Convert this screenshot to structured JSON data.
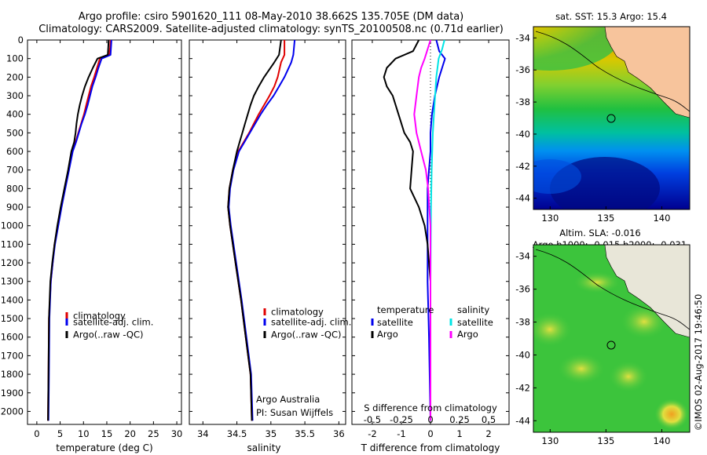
{
  "header": {
    "line1": "Argo profile: csiro 5901620_111 08-May-2010 38.662S 135.705E (DM data)",
    "line2": "Climatology: CARS2009. Satellite-adjusted climatology: synTS_20100508.nc (0.71d earlier)"
  },
  "depth_ticks": [
    "0",
    "100",
    "200",
    "300",
    "400",
    "500",
    "600",
    "700",
    "800",
    "900",
    "1000",
    "1100",
    "1200",
    "1300",
    "1400",
    "1500",
    "1600",
    "1700",
    "1800",
    "1900",
    "2000"
  ],
  "colors": {
    "climatology": "#e00000",
    "satellite": "#0000ee",
    "argo": "#000000",
    "sat_salinity": "#00e5e5",
    "argo_salinity": "#ff00ff"
  },
  "temperature_panel": {
    "xlabel": "temperature (deg C)",
    "xticks": [
      "0",
      "5",
      "10",
      "15",
      "20",
      "25",
      "30"
    ],
    "legend": [
      "climatology",
      "satellite-adj. clim.",
      "Argo(..raw -QC)"
    ]
  },
  "salinity_panel": {
    "xlabel": "salinity",
    "xticks": [
      "34",
      "34.5",
      "35",
      "35.5",
      "36"
    ],
    "legend": [
      "climatology",
      "satellite-adj. clim.",
      "Argo(..raw -QC)"
    ],
    "note1": "Argo Australia",
    "note2": "PI: Susan Wijffels"
  },
  "diff_panel": {
    "xlabel": "T difference from climatology",
    "xticks": [
      "-2",
      "-1",
      "0",
      "1",
      "2"
    ],
    "top_label": "S difference from climatology",
    "top_ticks": [
      "-0.5",
      "-0.25",
      "0",
      "0.25",
      "0.5"
    ],
    "legend_left_title": "temperature",
    "legend_right_title": "salinity",
    "legend_left": [
      "satellite",
      "Argo"
    ],
    "legend_right": [
      "satellite",
      "Argo"
    ]
  },
  "sst_map": {
    "title": "sat. SST: 15.3  Argo: 15.4",
    "xticks": [
      "130",
      "135",
      "140"
    ],
    "yticks": [
      "-34",
      "-36",
      "-38",
      "-40",
      "-42",
      "-44"
    ]
  },
  "sla_map": {
    "title1": "Altim. SLA: -0.016",
    "title2": "Argo h1000: -0.015  h2000: -0.031",
    "xticks": [
      "130",
      "135",
      "140"
    ],
    "yticks": [
      "-34",
      "-36",
      "-38",
      "-40",
      "-42",
      "-44"
    ]
  },
  "credit": "©IMOS 02-Aug-2017 19:46:50",
  "chart_data": [
    {
      "type": "line",
      "xlabel": "temperature (deg C)",
      "ylabel": "",
      "xlim": [
        -2,
        31
      ],
      "ylim": [
        2070,
        0
      ],
      "series": [
        {
          "name": "climatology",
          "color": "#e00000",
          "x": [
            15.8,
            15.7,
            15.5,
            13.5,
            12.9,
            12.3,
            11.6,
            11.1,
            10.6,
            10.1,
            9.5,
            8.9,
            8.3,
            7.6,
            6.8,
            6.0,
            5.2,
            4.5,
            3.8,
            3.4,
            3.0,
            2.6,
            2.5,
            2.4
          ],
          "y": [
            0,
            40,
            80,
            100,
            150,
            200,
            250,
            300,
            350,
            400,
            450,
            500,
            550,
            600,
            700,
            800,
            900,
            1000,
            1100,
            1200,
            1300,
            1500,
            1800,
            2050
          ]
        },
        {
          "name": "satellite-adj. clim.",
          "color": "#0000ee",
          "x": [
            16.0,
            15.9,
            15.8,
            13.9,
            13.2,
            12.6,
            11.9,
            11.4,
            10.9,
            10.3,
            9.6,
            9.0,
            8.4,
            7.7,
            6.9,
            6.1,
            5.3,
            4.6,
            3.9,
            3.4,
            3.0,
            2.7,
            2.6,
            2.5
          ],
          "y": [
            0,
            40,
            80,
            100,
            150,
            200,
            250,
            300,
            350,
            400,
            450,
            500,
            550,
            600,
            700,
            800,
            900,
            1000,
            1100,
            1200,
            1300,
            1500,
            1800,
            2050
          ]
        },
        {
          "name": "Argo(..raw -QC)",
          "color": "#000000",
          "x": [
            15.4,
            15.3,
            15.2,
            13.0,
            12.0,
            11.1,
            10.3,
            9.7,
            9.2,
            8.8,
            8.5,
            8.3,
            8.0,
            7.4,
            6.7,
            5.9,
            5.1,
            4.4,
            3.8,
            3.3,
            2.9,
            2.6,
            2.5,
            2.4
          ],
          "y": [
            0,
            40,
            80,
            100,
            150,
            200,
            250,
            300,
            350,
            400,
            450,
            500,
            550,
            600,
            700,
            800,
            900,
            1000,
            1100,
            1200,
            1300,
            1500,
            1800,
            2050
          ]
        }
      ]
    },
    {
      "type": "line",
      "xlabel": "salinity",
      "ylabel": "",
      "xlim": [
        33.8,
        36.1
      ],
      "ylim": [
        2070,
        0
      ],
      "series": [
        {
          "name": "climatology",
          "color": "#e00000",
          "x": [
            35.2,
            35.2,
            35.15,
            35.1,
            35.05,
            34.98,
            34.9,
            34.82,
            34.75,
            34.68,
            34.6,
            34.52,
            34.44,
            34.39,
            34.37,
            34.4,
            34.48,
            34.56,
            34.63,
            34.7,
            34.72
          ],
          "y": [
            0,
            80,
            120,
            200,
            250,
            300,
            350,
            400,
            450,
            500,
            550,
            600,
            700,
            800,
            900,
            1000,
            1200,
            1400,
            1600,
            1800,
            2050
          ]
        },
        {
          "name": "satellite-adj. clim.",
          "color": "#0000ee",
          "x": [
            35.35,
            35.33,
            35.3,
            35.2,
            35.12,
            35.04,
            34.94,
            34.85,
            34.77,
            34.69,
            34.61,
            34.53,
            34.45,
            34.4,
            34.38,
            34.41,
            34.49,
            34.57,
            34.64,
            34.71,
            34.73
          ],
          "y": [
            0,
            80,
            120,
            200,
            250,
            300,
            350,
            400,
            450,
            500,
            550,
            600,
            700,
            800,
            900,
            1000,
            1200,
            1400,
            1600,
            1800,
            2050
          ]
        },
        {
          "name": "Argo(..raw -QC)",
          "color": "#000000",
          "x": [
            35.15,
            35.12,
            35.05,
            34.9,
            34.82,
            34.75,
            34.7,
            34.66,
            34.62,
            34.58,
            34.54,
            34.5,
            34.44,
            34.39,
            34.37,
            34.4,
            34.48,
            34.56,
            34.63,
            34.7,
            34.72
          ],
          "y": [
            0,
            80,
            120,
            200,
            250,
            300,
            350,
            400,
            450,
            500,
            550,
            600,
            700,
            800,
            900,
            1000,
            1200,
            1400,
            1600,
            1800,
            2050
          ]
        }
      ]
    },
    {
      "type": "line",
      "xlabel": "T difference from climatology",
      "ylabel": "",
      "xlim": [
        -2.7,
        2.7
      ],
      "ylim": [
        2070,
        0
      ],
      "secondary_x_label": "S difference from climatology",
      "secondary_xlim": [
        -0.675,
        0.675
      ],
      "series": [
        {
          "name": "temperature satellite",
          "color": "#0000ee",
          "x": [
            0.2,
            0.3,
            0.5,
            0.4,
            0.3,
            0.15,
            0.05,
            0.0,
            0.0,
            -0.05,
            -0.1,
            -0.1,
            -0.1,
            -0.05,
            0.0
          ],
          "y": [
            0,
            60,
            100,
            150,
            200,
            300,
            400,
            500,
            600,
            700,
            800,
            1000,
            1300,
            1600,
            2050
          ]
        },
        {
          "name": "temperature Argo",
          "color": "#000000",
          "x": [
            -0.4,
            -0.6,
            -1.2,
            -1.5,
            -1.6,
            -1.5,
            -1.3,
            -1.1,
            -0.9,
            -0.7,
            -0.6,
            -0.65,
            -0.7,
            -0.4,
            -0.2,
            -0.1,
            0.0,
            0.0
          ],
          "y": [
            0,
            60,
            100,
            150,
            200,
            250,
            300,
            400,
            500,
            550,
            600,
            700,
            800,
            900,
            1000,
            1100,
            1300,
            2050
          ]
        },
        {
          "name": "salinity satellite",
          "color": "#00e5e5",
          "x": [
            0.12,
            0.1,
            0.07,
            0.05,
            0.04,
            0.03,
            0.02,
            0.01,
            0.005,
            0.0,
            0.0
          ],
          "y": [
            0,
            50,
            100,
            200,
            300,
            400,
            500,
            700,
            900,
            1300,
            2050
          ]
        },
        {
          "name": "salinity Argo",
          "color": "#ff00ff",
          "x": [
            0.0,
            -0.05,
            -0.08,
            -0.1,
            -0.12,
            -0.14,
            -0.12,
            -0.08,
            -0.04,
            -0.02,
            0.0,
            0.0
          ],
          "y": [
            0,
            100,
            150,
            200,
            300,
            400,
            500,
            600,
            700,
            800,
            1000,
            2050
          ]
        }
      ]
    }
  ]
}
